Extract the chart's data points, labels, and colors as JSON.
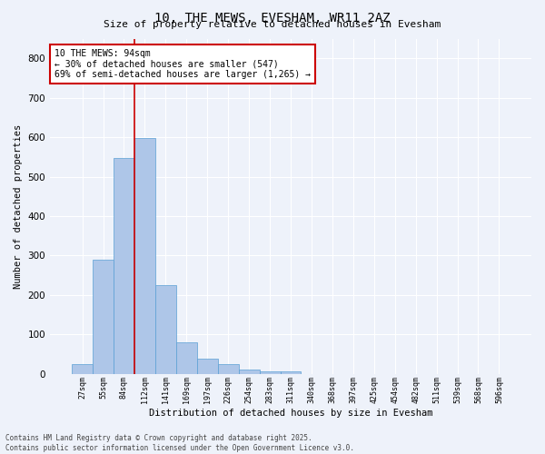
{
  "title": "10, THE MEWS, EVESHAM, WR11 2AZ",
  "subtitle": "Size of property relative to detached houses in Evesham",
  "xlabel": "Distribution of detached houses by size in Evesham",
  "ylabel": "Number of detached properties",
  "categories": [
    "27sqm",
    "55sqm",
    "84sqm",
    "112sqm",
    "141sqm",
    "169sqm",
    "197sqm",
    "226sqm",
    "254sqm",
    "283sqm",
    "311sqm",
    "340sqm",
    "368sqm",
    "397sqm",
    "425sqm",
    "454sqm",
    "482sqm",
    "511sqm",
    "539sqm",
    "568sqm",
    "596sqm"
  ],
  "values": [
    25,
    290,
    547,
    597,
    225,
    80,
    38,
    25,
    10,
    7,
    5,
    0,
    0,
    0,
    0,
    0,
    0,
    0,
    0,
    0,
    0
  ],
  "bar_color": "#aec6e8",
  "bar_edge_color": "#5a9fd4",
  "annotation_text": "10 THE MEWS: 94sqm\n← 30% of detached houses are smaller (547)\n69% of semi-detached houses are larger (1,265) →",
  "annotation_box_color": "#ffffff",
  "annotation_border_color": "#cc0000",
  "background_color": "#eef2fa",
  "grid_color": "#ffffff",
  "footer_line1": "Contains HM Land Registry data © Crown copyright and database right 2025.",
  "footer_line2": "Contains public sector information licensed under the Open Government Licence v3.0.",
  "ylim": [
    0,
    850
  ],
  "yticks": [
    0,
    100,
    200,
    300,
    400,
    500,
    600,
    700,
    800
  ],
  "vline_bin_index": 2,
  "figwidth": 6.0,
  "figheight": 5.0,
  "dpi": 100
}
